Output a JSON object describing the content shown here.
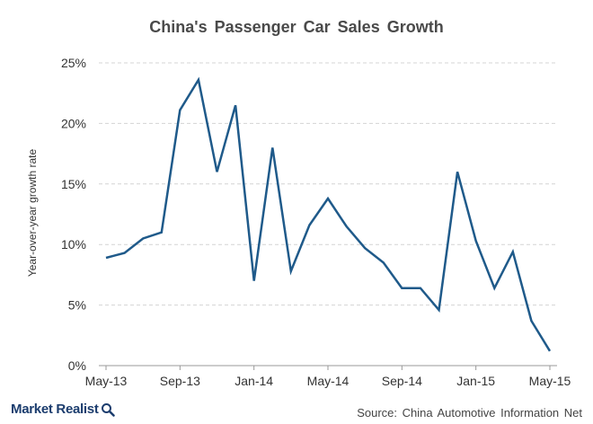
{
  "chart_data": {
    "type": "line",
    "title": "China's Passenger Car Sales Growth",
    "ylabel": "Year-over-year growth rate",
    "xlabel": "",
    "ylim": [
      0,
      25
    ],
    "yticks": [
      0,
      5,
      10,
      15,
      20,
      25
    ],
    "ytick_labels": [
      "0%",
      "5%",
      "10%",
      "15%",
      "20%",
      "25%"
    ],
    "xtick_labels": [
      "May-13",
      "Sep-13",
      "Jan-14",
      "May-14",
      "Sep-14",
      "Jan-15",
      "May-15"
    ],
    "xtick_positions": [
      "2013-05",
      "2013-09",
      "2014-01",
      "2014-05",
      "2014-09",
      "2015-01",
      "2015-05"
    ],
    "grid": "horizontal dashed",
    "line_color": "#1f5a8a",
    "series": [
      {
        "x": [
          "2013-05",
          "2013-06",
          "2013-07",
          "2013-08",
          "2013-09",
          "2013-10",
          "2013-11",
          "2013-12",
          "2014-01",
          "2014-02",
          "2014-03",
          "2014-04",
          "2014-05",
          "2014-06",
          "2014-07",
          "2014-08",
          "2014-09",
          "2014-10",
          "2014-11",
          "2014-12",
          "2015-01",
          "2015-02",
          "2015-03",
          "2015-04",
          "2015-05"
        ],
        "values": [
          8.9,
          9.3,
          10.5,
          11.0,
          21.1,
          23.6,
          16.0,
          21.5,
          7.0,
          18.0,
          7.8,
          11.6,
          13.8,
          11.5,
          9.7,
          8.5,
          6.4,
          6.4,
          4.6,
          16.0,
          10.3,
          6.4,
          9.4,
          3.7,
          1.2
        ]
      }
    ]
  },
  "footer": {
    "brand": "Market Realist",
    "brand_color": "#1c3d6e",
    "source": "Source: China Automotive Information Net"
  }
}
